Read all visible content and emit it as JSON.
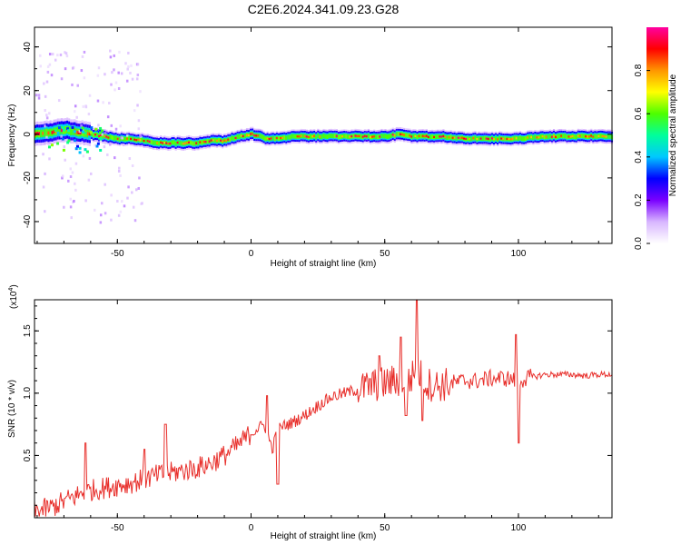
{
  "title": "C2E6.2024.341.09.23.G28",
  "colors": {
    "snr_line": "#e8302c",
    "ridge": "#ff1e1e",
    "frame": "#000000"
  },
  "colorbar": {
    "label": "Normalized spectral amplitude",
    "ticks": [
      0.0,
      0.2,
      0.4,
      0.6,
      0.8
    ],
    "tick_labels": [
      "0.0",
      "0.2",
      "0.4",
      "0.6",
      "0.8"
    ],
    "range": [
      0,
      1
    ],
    "colormap": [
      "#ffffff",
      "#d8b6ff",
      "#7a00ff",
      "#0000ff",
      "#00c8ff",
      "#00ff9c",
      "#4dff00",
      "#ffff00",
      "#ff9600",
      "#ff0000",
      "#ff00a0"
    ]
  },
  "chart_data": [
    {
      "type": "heatmap",
      "xlabel": "Height of straight line (km)",
      "ylabel": "Frequency (Hz)",
      "xlim": [
        -81,
        135
      ],
      "ylim": [
        -50,
        49
      ],
      "xticks": [
        -50,
        0,
        50,
        100
      ],
      "yticks": [
        -40,
        -20,
        0,
        20,
        40
      ],
      "ridge": {
        "x": [
          -81,
          -75,
          -70,
          -65,
          -60,
          -55,
          -50,
          -45,
          -40,
          -35,
          -30,
          -25,
          -20,
          -15,
          -10,
          -5,
          0,
          3,
          5,
          10,
          15,
          20,
          30,
          40,
          50,
          55,
          60,
          70,
          80,
          90,
          100,
          110,
          120,
          135
        ],
        "frequency": [
          0,
          1,
          2,
          1,
          0,
          -1,
          -2,
          -2,
          -3,
          -4,
          -4,
          -4,
          -4,
          -3,
          -3,
          -1,
          0,
          -1,
          -2,
          -2,
          -1,
          -1,
          -1,
          -1,
          -1,
          0,
          -1,
          -1,
          -2,
          -2,
          -2,
          -1,
          -1,
          -1
        ]
      }
    },
    {
      "type": "line",
      "xlabel": "Height of straight line (km)",
      "ylabel": "SNR (10 * v/v)",
      "ymultiplier": "(x10",
      "yexponent": "4",
      "ymultiplier_close": ")",
      "xlim": [
        -81,
        135
      ],
      "ylim": [
        0,
        1.75
      ],
      "xticks": [
        -50,
        0,
        50,
        100
      ],
      "yticks": [
        0.5,
        1.0,
        1.5
      ],
      "ytick_labels": [
        "0.5",
        "1.0",
        "1.5"
      ],
      "series": [
        {
          "x": [
            -81,
            -75,
            -70,
            -65,
            -60,
            -55,
            -50,
            -45,
            -40,
            -35,
            -30,
            -25,
            -20,
            -15,
            -10,
            -5,
            0,
            5,
            8,
            10,
            15,
            20,
            25,
            30,
            35,
            40,
            45,
            50,
            55,
            60,
            62,
            65,
            70,
            75,
            80,
            85,
            90,
            95,
            100,
            105,
            110,
            115,
            120,
            125,
            130,
            135
          ],
          "y": [
            0.05,
            0.08,
            0.13,
            0.18,
            0.22,
            0.24,
            0.26,
            0.28,
            0.31,
            0.34,
            0.36,
            0.38,
            0.4,
            0.44,
            0.5,
            0.58,
            0.68,
            0.75,
            0.55,
            0.72,
            0.76,
            0.82,
            0.9,
            0.97,
            1.0,
            1.03,
            1.06,
            1.08,
            1.1,
            1.12,
            1.2,
            1.08,
            1.06,
            1.08,
            1.1,
            1.1,
            1.12,
            1.12,
            1.1,
            1.13,
            1.15,
            1.15,
            1.15,
            1.14,
            1.15,
            1.15
          ]
        }
      ],
      "spikes": [
        {
          "x": -62,
          "y": 0.6
        },
        {
          "x": -40,
          "y": 0.55
        },
        {
          "x": -32,
          "y": 0.75
        },
        {
          "x": 6,
          "y": 0.98
        },
        {
          "x": 10,
          "y": 0.27
        },
        {
          "x": 48,
          "y": 1.3
        },
        {
          "x": 56,
          "y": 1.45
        },
        {
          "x": 58,
          "y": 0.82
        },
        {
          "x": 62,
          "y": 1.75
        },
        {
          "x": 64,
          "y": 0.78
        },
        {
          "x": 99,
          "y": 1.47
        },
        {
          "x": 100,
          "y": 0.6
        }
      ]
    }
  ]
}
